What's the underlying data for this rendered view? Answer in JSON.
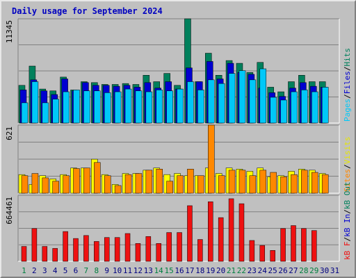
{
  "chart_data": {
    "type": "bar",
    "title": "Daily usage for September 2024",
    "categories": [
      "1",
      "2",
      "3",
      "4",
      "5",
      "6",
      "7",
      "8",
      "9",
      "10",
      "11",
      "12",
      "13",
      "14",
      "15",
      "16",
      "17",
      "18",
      "19",
      "20",
      "21",
      "22",
      "23",
      "24",
      "25",
      "26",
      "27",
      "28",
      "29",
      "30",
      "31"
    ],
    "weekend_days": [
      "1",
      "7",
      "8",
      "14",
      "15",
      "21",
      "22",
      "28",
      "29"
    ],
    "panels": [
      {
        "name": "hits-files-pages",
        "y_max_label": "11345",
        "ylim": [
          0,
          11345
        ],
        "legend": [
          "Pages",
          "/",
          "Files",
          "/",
          "Hits"
        ],
        "series": [
          {
            "name": "Hits",
            "color": "#00805c",
            "values": [
              4100,
              6200,
              3700,
              3500,
              5000,
              3600,
              4500,
              4400,
              4200,
              4200,
              4300,
              4200,
              5200,
              4500,
              5400,
              4100,
              11345,
              4500,
              7600,
              5200,
              6800,
              6500,
              5500,
              6600,
              3900,
              3400,
              4500,
              5200,
              4500,
              4500,
              0
            ]
          },
          {
            "name": "Files",
            "color": "#0000d0",
            "values": [
              3600,
              4700,
              3500,
              3100,
              4800,
              3500,
              4400,
              4100,
              4100,
              4000,
              4100,
              3900,
              4400,
              3800,
              4500,
              3700,
              6000,
              4500,
              6700,
              4800,
              6500,
              5500,
              5300,
              3800,
              3300,
              2900,
              3800,
              4400,
              4000,
              3900,
              0
            ]
          },
          {
            "name": "Pages",
            "color": "#00c8f8",
            "values": [
              2200,
              4500,
              2200,
              2600,
              3400,
              3600,
              3500,
              3500,
              3300,
              3400,
              3700,
              3500,
              3400,
              3600,
              3500,
              3700,
              4500,
              3600,
              4700,
              4300,
              5400,
              5700,
              4700,
              5900,
              2800,
              2500,
              3400,
              3600,
              3400,
              3900,
              0
            ]
          }
        ]
      },
      {
        "name": "sites-visits",
        "y_max_label": "621",
        "ylim": [
          0,
          621
        ],
        "legend": [
          "Sites",
          "/",
          "Visits"
        ],
        "series": [
          {
            "name": "Visits",
            "color": "#ffff00",
            "values": [
              170,
              80,
              160,
              130,
              170,
              230,
              230,
              310,
              170,
              80,
              180,
              180,
              210,
              230,
              170,
              180,
              160,
              160,
              230,
              180,
              230,
              220,
              200,
              230,
              150,
              160,
              200,
              220,
              210,
              180,
              0
            ]
          },
          {
            "name": "Sites",
            "color": "#ff8800",
            "values": [
              160,
              180,
              140,
              110,
              160,
              225,
              230,
              280,
              160,
              70,
              170,
              180,
              210,
              220,
              110,
              160,
              220,
              160,
              621,
              160,
              210,
              210,
              160,
              210,
              190,
              150,
              170,
              210,
              190,
              170,
              0
            ]
          }
        ]
      },
      {
        "name": "kb",
        "y_max_label": "664461",
        "ylim": [
          0,
          664461
        ],
        "legend": [
          "kB F",
          "/",
          "kB In",
          "/",
          "kB Out"
        ],
        "series": [
          {
            "name": "kB F",
            "color": "#ee1111",
            "values": [
              150000,
              330000,
              150000,
              130000,
              300000,
              230000,
              260000,
              200000,
              240000,
              240000,
              280000,
              180000,
              250000,
              180000,
              290000,
              290000,
              560000,
              220000,
              600000,
              440000,
              630000,
              580000,
              210000,
              160000,
              110000,
              330000,
              360000,
              330000,
              310000,
              0,
              0
            ]
          }
        ]
      }
    ]
  },
  "legend_colors": {
    "Pages": "#00c8f8",
    "Files": "#0000d0",
    "Hits": "#00805c",
    "Sites": "#ff8800",
    "Visits": "#e6e600",
    "kB F": "#ee1111",
    "kB In": "#0000d0",
    "kB Out": "#00805c",
    "slash": "#000000"
  },
  "colors": {
    "weekday_label": "#000080",
    "weekend_label": "#008040"
  }
}
